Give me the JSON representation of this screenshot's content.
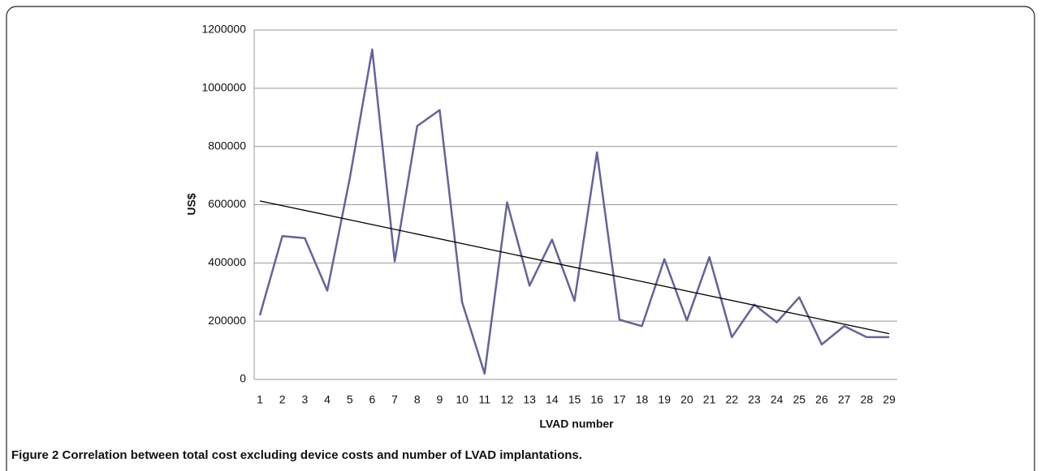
{
  "chart_data": {
    "type": "line",
    "caption": {
      "label": "Figure 2",
      "text": "Correlation between total cost excluding device costs and number of LVAD implantations."
    },
    "x_label": "LVAD number",
    "y_label": "US$",
    "categories": [
      "1",
      "2",
      "3",
      "4",
      "5",
      "6",
      "7",
      "8",
      "9",
      "10",
      "11",
      "12",
      "13",
      "14",
      "15",
      "16",
      "17",
      "18",
      "19",
      "20",
      "21",
      "22",
      "23",
      "24",
      "25",
      "26",
      "27",
      "28",
      "29"
    ],
    "series": [
      {
        "name": "Total cost",
        "color": "#65639a",
        "values": [
          220000,
          492000,
          485000,
          305000,
          690000,
          1133000,
          405000,
          870000,
          925000,
          265000,
          20000,
          608000,
          322000,
          480000,
          270000,
          780000,
          205000,
          183000,
          413000,
          202000,
          420000,
          145000,
          257000,
          196000,
          282000,
          120000,
          183000,
          145000,
          145000
        ]
      }
    ],
    "trendline": {
      "color": "#000000",
      "values": [
        613000,
        157000
      ]
    },
    "ylim": [
      0,
      1200000
    ],
    "yticks": [
      0,
      200000,
      400000,
      600000,
      800000,
      1000000,
      1200000
    ],
    "grid": true
  }
}
